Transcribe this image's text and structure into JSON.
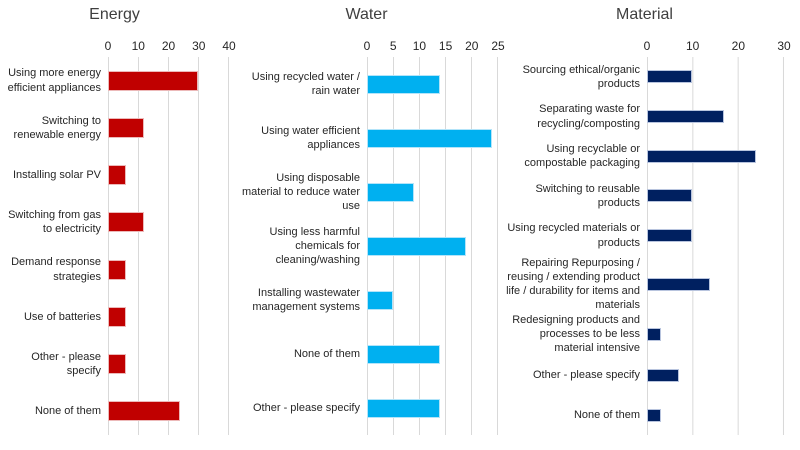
{
  "page": {
    "background": "#ffffff",
    "gridline_color": "#d9d9d9",
    "text_color": "#262626",
    "title_color": "#3f3f3f"
  },
  "chart_data": [
    {
      "type": "bar",
      "orientation": "horizontal",
      "title": "Energy",
      "categories": [
        "Using more energy efficient appliances",
        "Switching to renewable energy",
        "Installing solar PV",
        "Switching from gas to electricity",
        "Demand response strategies",
        "Use of batteries",
        "Other - please specify",
        "None of them"
      ],
      "values": [
        30,
        12,
        6,
        12,
        6,
        6,
        6,
        24
      ],
      "xlim": [
        0,
        40
      ],
      "ticks": [
        0,
        10,
        20,
        30,
        40
      ],
      "axis_position": "top",
      "grid": "vertical",
      "legend": "none",
      "bar_color": "#C00000",
      "bar_border": "#ECB9B9"
    },
    {
      "type": "bar",
      "orientation": "horizontal",
      "title": "Water",
      "categories": [
        "Using recycled water / rain water",
        "Using water efficient appliances",
        "Using disposable material to reduce water use",
        "Using less harmful chemicals for cleaning/washing",
        "Installing wastewater management systems",
        "None of them",
        "Other - please specify"
      ],
      "values": [
        14,
        24,
        9,
        19,
        5,
        14,
        14
      ],
      "xlim": [
        0,
        25
      ],
      "ticks": [
        0,
        5,
        10,
        15,
        20,
        25
      ],
      "axis_position": "top",
      "grid": "vertical",
      "legend": "none",
      "bar_color": "#00B0F0",
      "bar_border": "#B3E4F9"
    },
    {
      "type": "bar",
      "orientation": "horizontal",
      "title": "Material",
      "categories": [
        "Sourcing ethical/organic products",
        "Separating waste for recycling/composting",
        "Using recyclable or compostable packaging",
        "Switching to reusable products",
        "Using recycled materials or products",
        "Repairing Repurposing / reusing / extending product life / durability for items and materials",
        "Redesigning products and processes to be less material intensive",
        "Other - please specify",
        "None of them"
      ],
      "values": [
        10,
        17,
        24,
        10,
        10,
        14,
        3,
        7,
        3
      ],
      "xlim": [
        0,
        30
      ],
      "ticks": [
        0,
        10,
        20,
        30
      ],
      "axis_position": "top",
      "grid": "vertical",
      "legend": "none",
      "bar_color": "#002060",
      "bar_border": "#B8C4DE"
    }
  ]
}
